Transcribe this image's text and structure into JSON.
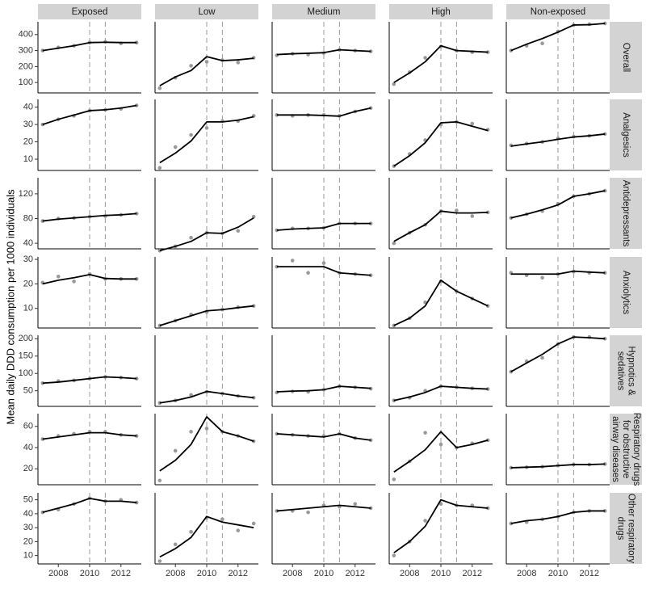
{
  "chart_data": {
    "type": "facet-line",
    "y_label": "Mean daily DDD consumption per 1000 individuals",
    "columns": [
      "Exposed",
      "Low",
      "Medium",
      "High",
      "Non-exposed"
    ],
    "x": [
      2007,
      2008,
      2009,
      2010,
      2011,
      2012,
      2013
    ],
    "xlim": [
      2006.7,
      2013.3
    ],
    "xticks": [
      2008,
      2010,
      2012
    ],
    "vlines": [
      2010,
      2011
    ],
    "point_color": "#999999",
    "line_color": "#000000",
    "rows": [
      {
        "label": [
          "Overall"
        ],
        "ylim": [
          35,
          480
        ],
        "yticks": [
          100,
          200,
          300,
          400
        ],
        "panels": [
          {
            "points": [
              300,
              320,
              330,
              350,
              355,
              345,
              350
            ],
            "fit": [
              300,
              315,
              330,
              350,
              352,
              350,
              350
            ]
          },
          {
            "points": [
              65,
              130,
              205,
              230,
              240,
              225,
              255
            ],
            "fit": [
              80,
              135,
              175,
              262,
              237,
              242,
              252
            ]
          },
          {
            "points": [
              270,
              280,
              275,
              285,
              305,
              300,
              295
            ],
            "fit": [
              275,
              280,
              283,
              287,
              305,
              300,
              295
            ]
          },
          {
            "points": [
              90,
              165,
              255,
              325,
              300,
              290,
              290
            ],
            "fit": [
              100,
              160,
              230,
              330,
              300,
              295,
              290
            ]
          },
          {
            "points": [
              300,
              330,
              345,
              420,
              460,
              465,
              470
            ],
            "fit": [
              300,
              340,
              375,
              415,
              460,
              462,
              470
            ]
          }
        ]
      },
      {
        "label": [
          "Analgesics"
        ],
        "ylim": [
          3.5,
          44.5
        ],
        "yticks": [
          10,
          20,
          30,
          40
        ],
        "panels": [
          {
            "points": [
              30,
              33,
              35,
              38,
              38.5,
              39,
              41
            ],
            "fit": [
              30,
              33,
              35.5,
              38,
              38.5,
              39.5,
              41
            ]
          },
          {
            "points": [
              5,
              17,
              24,
              28,
              32,
              32,
              35
            ],
            "fit": [
              8,
              13.5,
              20.5,
              31.5,
              31.5,
              32.5,
              34.5
            ]
          },
          {
            "points": [
              35.5,
              35,
              35.5,
              35.5,
              35,
              37.5,
              39.5
            ],
            "fit": [
              35.5,
              35.5,
              35.5,
              35.2,
              34.8,
              37.5,
              39.5
            ]
          },
          {
            "points": [
              6,
              13,
              21,
              30,
              31.5,
              30.5,
              27
            ],
            "fit": [
              6,
              12,
              19.5,
              31,
              31.5,
              29,
              26.5
            ]
          },
          {
            "points": [
              18,
              19,
              20,
              22,
              23,
              23.5,
              24.5
            ],
            "fit": [
              17.5,
              18.8,
              20,
              21.5,
              22.8,
              23.5,
              24.5
            ]
          }
        ]
      },
      {
        "label": [
          "Antidepressants"
        ],
        "ylim": [
          31,
          146
        ],
        "yticks": [
          40,
          80,
          120
        ],
        "panels": [
          {
            "points": [
              76,
              80,
              81,
              83,
              84,
              86,
              88
            ],
            "fit": [
              76,
              79,
              81,
              83,
              85,
              86,
              88
            ]
          },
          {
            "points": [
              28,
              35,
              49,
              57,
              56,
              60,
              83
            ],
            "fit": [
              28,
              35,
              43,
              57,
              56,
              66,
              81
            ]
          },
          {
            "points": [
              61,
              64,
              64,
              65,
              72,
              72,
              72
            ],
            "fit": [
              61,
              63,
              64,
              65,
              72,
              72,
              72
            ]
          },
          {
            "points": [
              40,
              57,
              70,
              92,
              93,
              84,
              90
            ],
            "fit": [
              43,
              57,
              70,
              92,
              89,
              89,
              90
            ]
          },
          {
            "points": [
              81,
              87,
              92,
              104,
              116,
              120,
              125
            ],
            "fit": [
              81,
              87,
              94,
              102,
              116,
              120,
              125
            ]
          }
        ]
      },
      {
        "label": [
          "Anxiolytics"
        ],
        "ylim": [
          2,
          31
        ],
        "yticks": [
          10,
          20,
          30
        ],
        "panels": [
          {
            "points": [
              20.5,
              23,
              21,
              24,
              22,
              22,
              22
            ],
            "fit": [
              20,
              21.5,
              22.5,
              23.8,
              22.2,
              22,
              22
            ]
          },
          {
            "points": [
              3,
              5,
              7.5,
              8.5,
              9.5,
              10.5,
              11
            ],
            "fit": [
              3,
              5,
              7,
              9,
              9.5,
              10.3,
              11
            ]
          },
          {
            "points": [
              27,
              29.5,
              24.5,
              28.5,
              24.5,
              24,
              23.5
            ],
            "fit": [
              27,
              27,
              27,
              27,
              24.5,
              24,
              23.5
            ]
          },
          {
            "points": [
              3,
              6,
              12.5,
              21,
              17,
              14,
              11
            ],
            "fit": [
              3,
              6,
              11,
              21.5,
              17,
              14,
              11
            ]
          },
          {
            "points": [
              24.5,
              23.5,
              22.5,
              24,
              25,
              24.5,
              24.5
            ],
            "fit": [
              24,
              24,
              24,
              24,
              25.2,
              24.8,
              24.5
            ]
          }
        ]
      },
      {
        "label": [
          "Hypnotics &",
          "sedatives"
        ],
        "ylim": [
          5,
          210
        ],
        "yticks": [
          50,
          100,
          150,
          200
        ],
        "panels": [
          {
            "points": [
              72,
              78,
              80,
              85,
              90,
              88,
              85
            ],
            "fit": [
              72,
              75,
              80,
              85,
              90,
              88,
              85
            ]
          },
          {
            "points": [
              15,
              22,
              38,
              47,
              42,
              35,
              30
            ],
            "fit": [
              15,
              22,
              32,
              48,
              42,
              35,
              30
            ]
          },
          {
            "points": [
              45,
              48,
              47,
              53,
              63,
              60,
              56
            ],
            "fit": [
              47,
              49,
              50,
              53,
              63,
              60,
              57
            ]
          },
          {
            "points": [
              22,
              30,
              50,
              63,
              60,
              57,
              55
            ],
            "fit": [
              22,
              32,
              45,
              63,
              60,
              57,
              55
            ]
          },
          {
            "points": [
              105,
              135,
              145,
              185,
              205,
              205,
              200
            ],
            "fit": [
              105,
              130,
              155,
              185,
              205,
              203,
              200
            ]
          }
        ]
      },
      {
        "label": [
          "Respiratory drugs",
          "for obstructive",
          "airway diseases"
        ],
        "ylim": [
          5,
          72
        ],
        "yticks": [
          20,
          40,
          60
        ],
        "panels": [
          {
            "points": [
              48,
              51,
              53,
              55,
              55,
              52,
              51
            ],
            "fit": [
              48,
              50,
              52,
              54,
              54,
              52,
              51
            ]
          },
          {
            "points": [
              9,
              37,
              55,
              58,
              55,
              51,
              46
            ],
            "fit": [
              18,
              28,
              43,
              69,
              55,
              51,
              46
            ]
          },
          {
            "points": [
              53,
              52,
              51,
              51,
              53,
              49,
              47
            ],
            "fit": [
              53,
              52,
              51,
              50,
              53,
              49,
              47
            ]
          },
          {
            "points": [
              10,
              27,
              54,
              43,
              40,
              44,
              47
            ],
            "fit": [
              17,
              27,
              38,
              55,
              40,
              43,
              47
            ]
          },
          {
            "points": [
              21,
              21.5,
              22,
              23,
              24,
              24,
              24.5
            ],
            "fit": [
              21,
              21.5,
              22,
              23,
              24,
              24,
              24.5
            ]
          }
        ]
      },
      {
        "label": [
          "Other respiratory",
          "drugs"
        ],
        "ylim": [
          4,
          55
        ],
        "yticks": [
          10,
          20,
          30,
          40,
          50
        ],
        "panels": [
          {
            "points": [
              41,
              43,
              47,
              51,
              49,
              50,
              48
            ],
            "fit": [
              41,
              44,
              47,
              51,
              49,
              49,
              48
            ]
          },
          {
            "points": [
              6,
              18,
              27,
              37,
              36,
              28,
              33
            ],
            "fit": [
              9,
              15,
              23,
              38,
              34,
              32,
              30
            ]
          },
          {
            "points": [
              42,
              42,
              41,
              46,
              45,
              47,
              44
            ],
            "fit": [
              42,
              43,
              44,
              45,
              46,
              45,
              44
            ]
          },
          {
            "points": [
              10,
              20,
              35,
              47,
              46,
              46,
              44
            ],
            "fit": [
              12,
              20,
              31,
              50,
              46,
              45,
              44
            ]
          },
          {
            "points": [
              33,
              34,
              36,
              38,
              41,
              42,
              42
            ],
            "fit": [
              33,
              35,
              36,
              38,
              41,
              42,
              42
            ]
          }
        ]
      }
    ]
  }
}
